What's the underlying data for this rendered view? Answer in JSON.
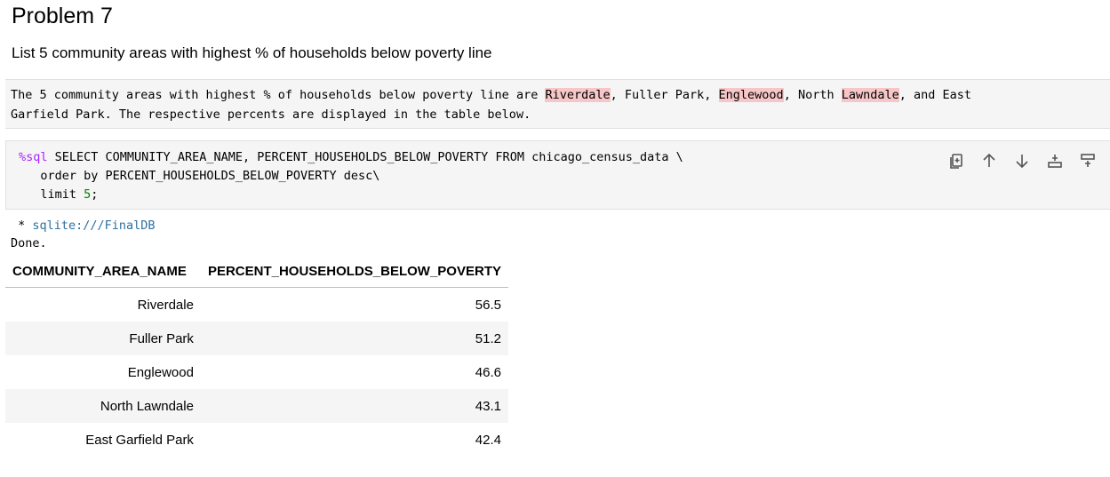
{
  "heading": "Problem 7",
  "subheading": "List 5 community areas with highest % of households below poverty line",
  "markdown": {
    "p1": "The 5 community areas with highest % of households below poverty line are ",
    "h1": "Riverdale",
    "p2": ", Fuller Park, ",
    "h2": "Englewood",
    "p3": ", North ",
    "h3": "Lawndale",
    "p4": ", and East",
    "line2": "Garfield Park. The respective percents are displayed in the table below."
  },
  "code": {
    "magic": "%sql",
    "line1_rest": " SELECT COMMUNITY_AREA_NAME, PERCENT_HOUSEHOLDS_BELOW_POVERTY FROM chicago_census_data \\",
    "line2": "   order by PERCENT_HOUSEHOLDS_BELOW_POVERTY desc\\",
    "line3_prefix": "   limit ",
    "line3_num": "5",
    "line3_suffix": ";"
  },
  "toolbar_icons": [
    "copy-icon",
    "arrow-up-icon",
    "arrow-down-icon",
    "insert-below-icon",
    "insert-above-icon"
  ],
  "output": {
    "conn_prefix": " * ",
    "conn_link": "sqlite:///FinalDB",
    "status": "Done."
  },
  "table": {
    "headers": [
      "COMMUNITY_AREA_NAME",
      "PERCENT_HOUSEHOLDS_BELOW_POVERTY"
    ],
    "rows": [
      [
        "Riverdale",
        "56.5"
      ],
      [
        "Fuller Park",
        "51.2"
      ],
      [
        "Englewood",
        "46.6"
      ],
      [
        "North Lawndale",
        "43.1"
      ],
      [
        "East Garfield Park",
        "42.4"
      ]
    ]
  }
}
